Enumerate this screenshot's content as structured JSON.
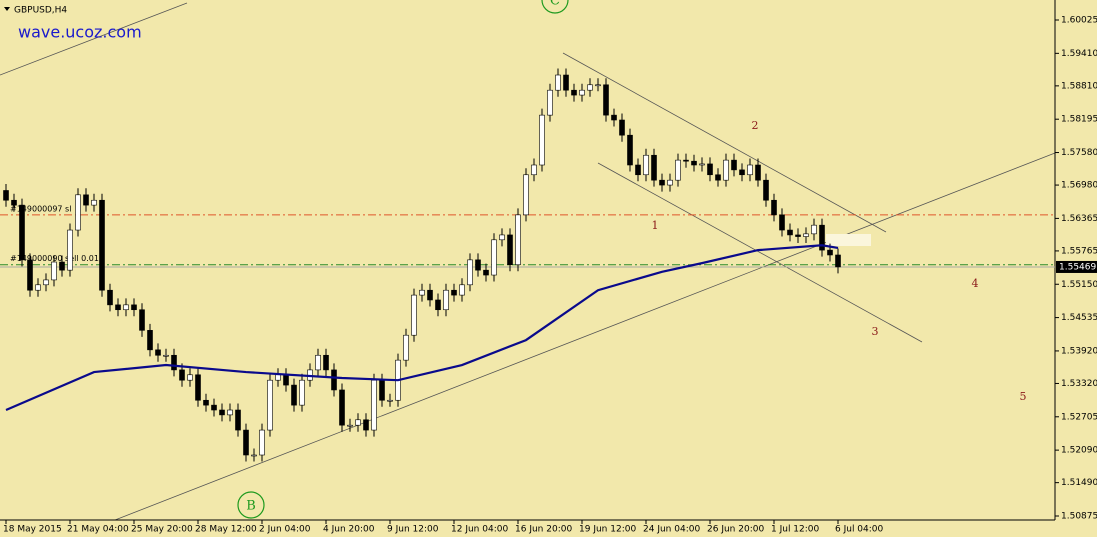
{
  "chart_data": {
    "type": "candlestick",
    "title": "GBPUSD,H4",
    "watermark": "wave.ucoz.com",
    "background": "#f2e8ab",
    "categories": [
      "18 May 2015",
      null,
      null,
      null,
      null,
      null,
      null,
      null,
      "21 May 04:00",
      null,
      null,
      null,
      null,
      null,
      null,
      null,
      "25 May 20:00",
      null,
      null,
      null,
      null,
      null,
      null,
      null,
      "28 May 12:00",
      null,
      null,
      null,
      null,
      null,
      null,
      null,
      "2 Jun 04:00",
      null,
      null,
      null,
      null,
      null,
      null,
      null,
      "4 Jun 20:00",
      null,
      null,
      null,
      null,
      null,
      null,
      null,
      "9 Jun 12:00",
      null,
      null,
      null,
      null,
      null,
      null,
      null,
      "12 Jun 04:00",
      null,
      null,
      null,
      null,
      null,
      null,
      null,
      "16 Jun 20:00",
      null,
      null,
      null,
      null,
      null,
      null,
      null,
      "19 Jun 12:00",
      null,
      null,
      null,
      null,
      null,
      null,
      null,
      "24 Jun 04:00",
      null,
      null,
      null,
      null,
      null,
      null,
      null,
      "26 Jun 20:00",
      null,
      null,
      null,
      null,
      null,
      null,
      null,
      "1 Jul 12:00",
      null,
      null,
      null,
      null,
      null,
      null,
      null,
      "6 Jul 04:00"
    ],
    "open": [
      1.5688,
      1.567,
      1.5661,
      1.556,
      1.5504,
      1.5514,
      1.5523,
      1.5556,
      1.5541,
      1.5615,
      1.568,
      1.5661,
      1.567,
      1.5504,
      1.5477,
      1.5468,
      1.5477,
      1.5468,
      1.543,
      1.5394,
      1.5384,
      1.5384,
      1.5357,
      1.5338,
      1.5348,
      1.5301,
      1.5292,
      1.5283,
      1.5274,
      1.5283,
      1.5246,
      1.52,
      1.52,
      1.5246,
      1.5338,
      1.5348,
      1.5329,
      1.5292,
      1.5338,
      1.5357,
      1.5384,
      1.5357,
      1.532,
      1.5255,
      1.5255,
      1.5265,
      1.5246,
      1.5338,
      1.5301,
      1.5301,
      1.5375,
      1.5421,
      1.5495,
      1.5504,
      1.5486,
      1.5468,
      1.5504,
      1.5495,
      1.5514,
      1.556,
      1.5541,
      1.5532,
      1.5597,
      1.5606,
      1.5551,
      1.5643,
      1.5717,
      1.5735,
      1.5827,
      1.5873,
      1.5901,
      1.5873,
      1.5864,
      1.5873,
      1.5883,
      1.5883,
      1.5827,
      1.5818,
      1.579,
      1.5735,
      1.5717,
      1.5753,
      1.5707,
      1.5698,
      1.5707,
      1.5744,
      1.5742,
      1.5735,
      1.5737,
      1.5717,
      1.5707,
      1.5744,
      1.5726,
      1.5717,
      1.5735,
      1.5707,
      1.567,
      1.5643,
      1.5615,
      1.5606,
      1.5603,
      1.5608,
      1.5624,
      1.5578,
      1.5569
    ],
    "high": [
      1.57,
      1.5682,
      1.5673,
      1.5572,
      1.5526,
      1.5535,
      1.5568,
      1.5568,
      1.5627,
      1.5692,
      1.5692,
      1.5682,
      1.5682,
      1.5516,
      1.5489,
      1.5489,
      1.5489,
      1.548,
      1.5442,
      1.5406,
      1.5396,
      1.5396,
      1.5369,
      1.536,
      1.536,
      1.5313,
      1.5304,
      1.5295,
      1.5295,
      1.5295,
      1.5258,
      1.5212,
      1.5258,
      1.535,
      1.536,
      1.536,
      1.5341,
      1.535,
      1.5369,
      1.5396,
      1.5396,
      1.5369,
      1.5332,
      1.5267,
      1.5277,
      1.5277,
      1.535,
      1.535,
      1.5313,
      1.5387,
      1.5433,
      1.5507,
      1.5516,
      1.5516,
      1.5498,
      1.5516,
      1.5516,
      1.5526,
      1.5572,
      1.5572,
      1.5553,
      1.5609,
      1.5618,
      1.5618,
      1.5655,
      1.5729,
      1.5747,
      1.5839,
      1.5885,
      1.5913,
      1.5913,
      1.5885,
      1.5885,
      1.5895,
      1.5895,
      1.5895,
      1.5839,
      1.583,
      1.5802,
      1.5747,
      1.5765,
      1.5765,
      1.5719,
      1.5719,
      1.5756,
      1.5756,
      1.5754,
      1.5749,
      1.5749,
      1.5729,
      1.5756,
      1.5756,
      1.5738,
      1.5747,
      1.5747,
      1.5719,
      1.5682,
      1.5655,
      1.5627,
      1.5618,
      1.562,
      1.5636,
      1.5636,
      1.559,
      1.5581
    ],
    "low": [
      1.5658,
      1.5649,
      1.5548,
      1.5492,
      1.5492,
      1.5502,
      1.5511,
      1.5529,
      1.5529,
      1.5603,
      1.5649,
      1.5649,
      1.5492,
      1.5465,
      1.5456,
      1.5456,
      1.5456,
      1.5418,
      1.5382,
      1.5372,
      1.5372,
      1.5345,
      1.5326,
      1.5326,
      1.5289,
      1.528,
      1.5271,
      1.5262,
      1.5262,
      1.5234,
      1.5188,
      1.5188,
      1.5188,
      1.5234,
      1.5326,
      1.5317,
      1.528,
      1.528,
      1.5326,
      1.5345,
      1.5345,
      1.5308,
      1.5243,
      1.5243,
      1.5243,
      1.5234,
      1.5234,
      1.5289,
      1.5289,
      1.5289,
      1.5363,
      1.5409,
      1.5483,
      1.5474,
      1.5456,
      1.5456,
      1.5483,
      1.5483,
      1.5502,
      1.5529,
      1.552,
      1.552,
      1.5585,
      1.5539,
      1.5539,
      1.5631,
      1.5705,
      1.5723,
      1.5815,
      1.5861,
      1.5861,
      1.5852,
      1.5852,
      1.5861,
      1.5871,
      1.5815,
      1.5806,
      1.5778,
      1.5723,
      1.5705,
      1.5705,
      1.5695,
      1.5686,
      1.5686,
      1.5695,
      1.573,
      1.5723,
      1.5723,
      1.5705,
      1.5695,
      1.5695,
      1.5714,
      1.5705,
      1.5705,
      1.5695,
      1.5658,
      1.5631,
      1.5603,
      1.5594,
      1.5591,
      1.5591,
      1.5596,
      1.5566,
      1.5557,
      1.5535
    ],
    "close": [
      1.567,
      1.5661,
      1.556,
      1.5504,
      1.5514,
      1.5523,
      1.5556,
      1.5541,
      1.5615,
      1.568,
      1.5661,
      1.567,
      1.5504,
      1.5477,
      1.5468,
      1.5477,
      1.5468,
      1.543,
      1.5394,
      1.5384,
      1.5384,
      1.5357,
      1.5338,
      1.5348,
      1.5301,
      1.5292,
      1.5283,
      1.5274,
      1.5283,
      1.5246,
      1.52,
      1.52,
      1.5246,
      1.5338,
      1.5348,
      1.5329,
      1.5292,
      1.5338,
      1.5357,
      1.5384,
      1.5357,
      1.532,
      1.5255,
      1.5255,
      1.5265,
      1.5246,
      1.5338,
      1.5301,
      1.5301,
      1.5375,
      1.5421,
      1.5495,
      1.5504,
      1.5486,
      1.5468,
      1.5504,
      1.5495,
      1.5514,
      1.556,
      1.5541,
      1.5532,
      1.5597,
      1.5606,
      1.5551,
      1.5643,
      1.5717,
      1.5735,
      1.5827,
      1.5873,
      1.5901,
      1.5873,
      1.5864,
      1.5873,
      1.5883,
      1.5883,
      1.5827,
      1.5818,
      1.579,
      1.5735,
      1.5717,
      1.5753,
      1.5707,
      1.5698,
      1.5707,
      1.5744,
      1.5742,
      1.5735,
      1.5737,
      1.5717,
      1.5707,
      1.5744,
      1.5726,
      1.5717,
      1.5735,
      1.5707,
      1.567,
      1.5643,
      1.5615,
      1.5606,
      1.5603,
      1.5608,
      1.5624,
      1.5578,
      1.5569,
      1.5547
    ],
    "ylim": [
      1.50801,
      1.60394
    ],
    "yticks": [
      1.60025,
      {
        "value": 1.5941,
        "label": "1.59410"
      },
      {
        "value": 1.5881,
        "label": "1.58810"
      },
      1.58195,
      {
        "value": 1.5758,
        "label": "1.57580"
      },
      {
        "value": 1.5698,
        "label": "1.56980"
      },
      1.56365,
      1.55765,
      {
        "value": 1.5515,
        "label": "1.55150"
      },
      1.54535,
      {
        "value": 1.5392,
        "label": "1.53920"
      },
      {
        "value": 1.5332,
        "label": "1.53320"
      },
      1.52705,
      {
        "value": 1.5209,
        "label": "1.52090"
      },
      {
        "value": 1.5149,
        "label": "1.51490"
      },
      1.50875
    ],
    "last_price": 1.55469,
    "levels": [
      {
        "name": "#149000097 sl",
        "value": 1.5643,
        "color": "#e0552b"
      },
      {
        "name": "#149000090 sell 0.01",
        "value": 1.5551,
        "color": "#2a8a2a"
      }
    ],
    "overlay": {
      "color": "#0a0a8c",
      "x": [
        0,
        11,
        20,
        30,
        42,
        49,
        57,
        65,
        74,
        82,
        87,
        94,
        102,
        104
      ],
      "values": [
        1.5283,
        1.5353,
        1.5366,
        1.5353,
        1.5342,
        1.5338,
        1.5366,
        1.5412,
        1.5504,
        1.5538,
        1.5554,
        1.5578,
        1.5587,
        1.5582
      ]
    },
    "annotations": [
      "1",
      "2",
      "3",
      "4",
      "5",
      "B",
      "C"
    ]
  }
}
